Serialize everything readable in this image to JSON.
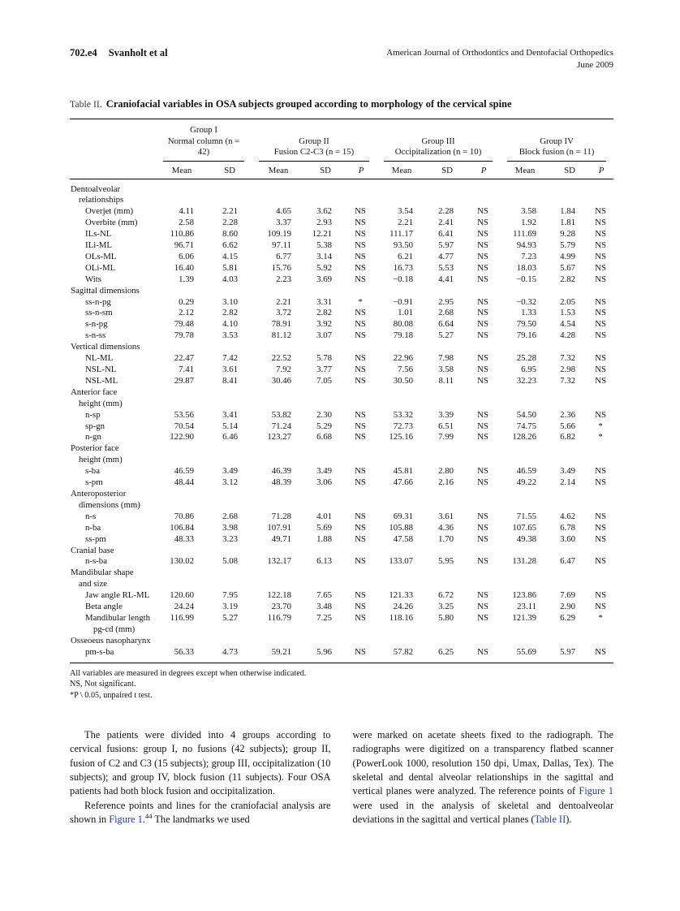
{
  "colors": {
    "link": "#2840a8",
    "rule": "#000000"
  },
  "runhead": {
    "page_number": "702.e4",
    "authors": "Svanholt et al",
    "journal": "American Journal of Orthodontics and Dentofacial Orthopedics",
    "issue_date": "June 2009"
  },
  "table": {
    "caption_label": "Table II.",
    "caption_text": "Craniofacial variables in OSA subjects grouped according to morphology of the cervical spine",
    "cols": {
      "mean": "Mean",
      "sd": "SD",
      "p": "P"
    },
    "groups": [
      {
        "name": "Group I",
        "sub": "Normal column (n = 42)"
      },
      {
        "name": "Group II",
        "sub": "Fusion C2-C3 (n = 15)"
      },
      {
        "name": "Group III",
        "sub": "Occipitalization (n = 10)"
      },
      {
        "name": "Group IV",
        "sub": "Block fusion (n = 11)"
      }
    ],
    "rows": [
      {
        "t": "s",
        "lines": [
          "Dentoalveolar",
          "relationships"
        ]
      },
      {
        "t": "d",
        "lines": [
          "Overjet (mm)"
        ],
        "v": [
          "4.11",
          "2.21",
          "4.65",
          "3.62",
          "NS",
          "3.54",
          "2.28",
          "NS",
          "3.58",
          "1.84",
          "NS"
        ]
      },
      {
        "t": "d",
        "lines": [
          "Overbite (mm)"
        ],
        "v": [
          "2.58",
          "2.28",
          "3.37",
          "2.93",
          "NS",
          "2.21",
          "2.41",
          "NS",
          "1.92",
          "1.81",
          "NS"
        ]
      },
      {
        "t": "d",
        "lines": [
          "ILs-NL"
        ],
        "v": [
          "110.86",
          "8.60",
          "109.19",
          "12.21",
          "NS",
          "111.17",
          "6.41",
          "NS",
          "111.69",
          "9.28",
          "NS"
        ]
      },
      {
        "t": "d",
        "lines": [
          "ILi-ML"
        ],
        "v": [
          "96.71",
          "6.62",
          "97.11",
          "5.38",
          "NS",
          "93.50",
          "5.97",
          "NS",
          "94.93",
          "5.79",
          "NS"
        ]
      },
      {
        "t": "d",
        "lines": [
          "OLs-ML"
        ],
        "v": [
          "6.06",
          "4.15",
          "6.77",
          "3.14",
          "NS",
          "6.21",
          "4.77",
          "NS",
          "7.23",
          "4.99",
          "NS"
        ]
      },
      {
        "t": "d",
        "lines": [
          "OLi-ML"
        ],
        "v": [
          "16.40",
          "5.81",
          "15.76",
          "5.92",
          "NS",
          "16.73",
          "5.53",
          "NS",
          "18.03",
          "5.67",
          "NS"
        ]
      },
      {
        "t": "d",
        "lines": [
          "Wits"
        ],
        "v": [
          "1.39",
          "4.03",
          "2.23",
          "3.69",
          "NS",
          "−0.18",
          "4.41",
          "NS",
          "−0.15",
          "2.82",
          "NS"
        ]
      },
      {
        "t": "s",
        "lines": [
          "Sagittal dimensions"
        ]
      },
      {
        "t": "d",
        "lines": [
          "ss-n-pg"
        ],
        "v": [
          "0.29",
          "3.10",
          "2.21",
          "3.31",
          "*",
          "−0.91",
          "2.95",
          "NS",
          "−0.32",
          "2.05",
          "NS"
        ]
      },
      {
        "t": "d",
        "lines": [
          "ss-n-sm"
        ],
        "v": [
          "2.12",
          "2.82",
          "3.72",
          "2.82",
          "NS",
          "1.01",
          "2.68",
          "NS",
          "1.33",
          "1.53",
          "NS"
        ]
      },
      {
        "t": "d",
        "lines": [
          "s-n-pg"
        ],
        "v": [
          "79.48",
          "4.10",
          "78.91",
          "3.92",
          "NS",
          "80.08",
          "6.64",
          "NS",
          "79.50",
          "4.54",
          "NS"
        ]
      },
      {
        "t": "d",
        "lines": [
          "s-n-ss"
        ],
        "v": [
          "79.78",
          "3.53",
          "81.12",
          "3.07",
          "NS",
          "79.18",
          "5.27",
          "NS",
          "79.16",
          "4.28",
          "NS"
        ]
      },
      {
        "t": "s",
        "lines": [
          "Vertical dimensions"
        ]
      },
      {
        "t": "d",
        "lines": [
          "NL-ML"
        ],
        "v": [
          "22.47",
          "7.42",
          "22.52",
          "5.78",
          "NS",
          "22.96",
          "7.98",
          "NS",
          "25.28",
          "7.32",
          "NS"
        ]
      },
      {
        "t": "d",
        "lines": [
          "NSL-NL"
        ],
        "v": [
          "7.41",
          "3.61",
          "7.92",
          "3.77",
          "NS",
          "7.56",
          "3.58",
          "NS",
          "6.95",
          "2.98",
          "NS"
        ]
      },
      {
        "t": "d",
        "lines": [
          "NSL-ML"
        ],
        "v": [
          "29.87",
          "8.41",
          "30.46",
          "7.05",
          "NS",
          "30.50",
          "8.11",
          "NS",
          "32.23",
          "7.32",
          "NS"
        ]
      },
      {
        "t": "s",
        "lines": [
          "Anterior face",
          "height (mm)"
        ]
      },
      {
        "t": "d",
        "lines": [
          "n-sp"
        ],
        "v": [
          "53.56",
          "3.41",
          "53.82",
          "2.30",
          "NS",
          "53.32",
          "3.39",
          "NS",
          "54.50",
          "2.36",
          "NS"
        ]
      },
      {
        "t": "d",
        "lines": [
          "sp-gn"
        ],
        "v": [
          "70.54",
          "5.14",
          "71.24",
          "5.29",
          "NS",
          "72.73",
          "6.51",
          "NS",
          "74.75",
          "5.66",
          "*"
        ]
      },
      {
        "t": "d",
        "lines": [
          "n-gn"
        ],
        "v": [
          "122.90",
          "6.46",
          "123.27",
          "6.68",
          "NS",
          "125.16",
          "7.99",
          "NS",
          "128.26",
          "6.82",
          "*"
        ]
      },
      {
        "t": "s",
        "lines": [
          "Posterior face",
          "height (mm)"
        ]
      },
      {
        "t": "d",
        "lines": [
          "s-ba"
        ],
        "v": [
          "46.59",
          "3.49",
          "46.39",
          "3.49",
          "NS",
          "45.81",
          "2.80",
          "NS",
          "46.59",
          "3.49",
          "NS"
        ]
      },
      {
        "t": "d",
        "lines": [
          "s-pm"
        ],
        "v": [
          "48.44",
          "3.12",
          "48.39",
          "3.06",
          "NS",
          "47.66",
          "2.16",
          "NS",
          "49.22",
          "2.14",
          "NS"
        ]
      },
      {
        "t": "s",
        "lines": [
          "Anteroposterior",
          "dimensions (mm)"
        ]
      },
      {
        "t": "d",
        "lines": [
          "n-s"
        ],
        "v": [
          "70.86",
          "2.68",
          "71.28",
          "4.01",
          "NS",
          "69.31",
          "3.61",
          "NS",
          "71.55",
          "4.62",
          "NS"
        ]
      },
      {
        "t": "d",
        "lines": [
          "n-ba"
        ],
        "v": [
          "106.84",
          "3.98",
          "107.91",
          "5.69",
          "NS",
          "105.88",
          "4.36",
          "NS",
          "107.65",
          "6.78",
          "NS"
        ]
      },
      {
        "t": "d",
        "lines": [
          "ss-pm"
        ],
        "v": [
          "48.33",
          "3.23",
          "49.71",
          "1.88",
          "NS",
          "47.58",
          "1.70",
          "NS",
          "49.38",
          "3.60",
          "NS"
        ]
      },
      {
        "t": "s",
        "lines": [
          "Cranial base"
        ]
      },
      {
        "t": "d",
        "lines": [
          "n-s-ba"
        ],
        "v": [
          "130.02",
          "5.08",
          "132.17",
          "6.13",
          "NS",
          "133.07",
          "5.95",
          "NS",
          "131.28",
          "6.47",
          "NS"
        ]
      },
      {
        "t": "s",
        "lines": [
          "Mandibular shape",
          "and size"
        ]
      },
      {
        "t": "d",
        "lines": [
          "Jaw angle RL-ML"
        ],
        "v": [
          "120.60",
          "7.95",
          "122.18",
          "7.65",
          "NS",
          "121.33",
          "6.72",
          "NS",
          "123.86",
          "7.69",
          "NS"
        ]
      },
      {
        "t": "d",
        "lines": [
          "Beta angle"
        ],
        "v": [
          "24.24",
          "3.19",
          "23.70",
          "3.48",
          "NS",
          "24.26",
          "3.25",
          "NS",
          "23.11",
          "2.90",
          "NS"
        ]
      },
      {
        "t": "d",
        "lines": [
          "Mandibular length",
          "pg-cd (mm)"
        ],
        "v": [
          "116.99",
          "5.27",
          "116.79",
          "7.25",
          "NS",
          "118.16",
          "5.80",
          "NS",
          "121.39",
          "6.29",
          "*"
        ]
      },
      {
        "t": "s",
        "lines": [
          "Osseoeus nasopharynx"
        ]
      },
      {
        "t": "d",
        "lines": [
          "pm-s-ba"
        ],
        "v": [
          "56.33",
          "4.73",
          "59.21",
          "5.96",
          "NS",
          "57.82",
          "6.25",
          "NS",
          "55.69",
          "5.97",
          "NS"
        ]
      }
    ],
    "footnotes": [
      "All variables are measured in degrees except when otherwise indicated.",
      "NS, Not significant.",
      "*P \\ 0.05, unpaired t test."
    ]
  },
  "body": {
    "left": [
      {
        "indent": true,
        "seg": [
          {
            "text": "The patients were divided into 4 groups according to cervical fusions: group I, no fusions (42 subjects); group II, fusion of C2 and C3 (15 subjects); group III, occipitalization (10 subjects); and group IV, block fusion (11 subjects). Four OSA patients had both block fusion and occipitalization."
          }
        ]
      },
      {
        "indent": true,
        "seg": [
          {
            "text": "Reference points and lines for the craniofacial analysis are shown in "
          },
          {
            "text": "Figure 1",
            "link": true
          },
          {
            "text": "."
          },
          {
            "text": "44",
            "sup": true
          },
          {
            "text": " The landmarks we used"
          }
        ]
      }
    ],
    "right": [
      {
        "indent": false,
        "seg": [
          {
            "text": "were marked on acetate sheets fixed to the radiograph. The radiographs were digitized on a transparency flatbed scanner (PowerLook 1000, resolution 150 dpi, Umax, Dallas, Tex). The skeletal and dental alveolar relationships in the sagittal and vertical planes were analyzed. The reference points of "
          },
          {
            "text": "Figure 1",
            "link": true
          },
          {
            "text": " were used in the analysis of skeletal and dentoalveolar deviations in the sagittal and vertical planes ("
          },
          {
            "text": "Table II",
            "link": true
          },
          {
            "text": ")."
          }
        ]
      }
    ]
  }
}
